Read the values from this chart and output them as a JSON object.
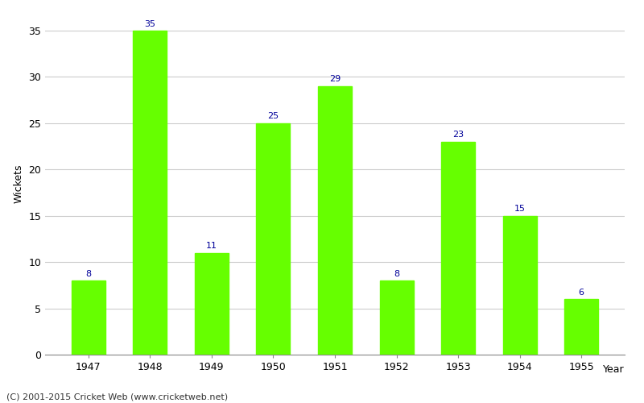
{
  "years": [
    "1947",
    "1948",
    "1949",
    "1950",
    "1951",
    "1952",
    "1953",
    "1954",
    "1955"
  ],
  "wickets": [
    8,
    35,
    11,
    25,
    29,
    8,
    23,
    15,
    6
  ],
  "bar_color": "#66ff00",
  "bar_edge_color": "#66ff00",
  "xlabel": "Year",
  "ylabel": "Wickets",
  "ylim": [
    0,
    37
  ],
  "yticks": [
    0,
    5,
    10,
    15,
    20,
    25,
    30,
    35
  ],
  "label_color": "#000099",
  "label_fontsize": 8,
  "axis_fontsize": 9,
  "background_color": "#ffffff",
  "grid_color": "#cccccc",
  "footer_text": "(C) 2001-2015 Cricket Web (www.cricketweb.net)",
  "footer_fontsize": 8,
  "footer_color": "#333333"
}
